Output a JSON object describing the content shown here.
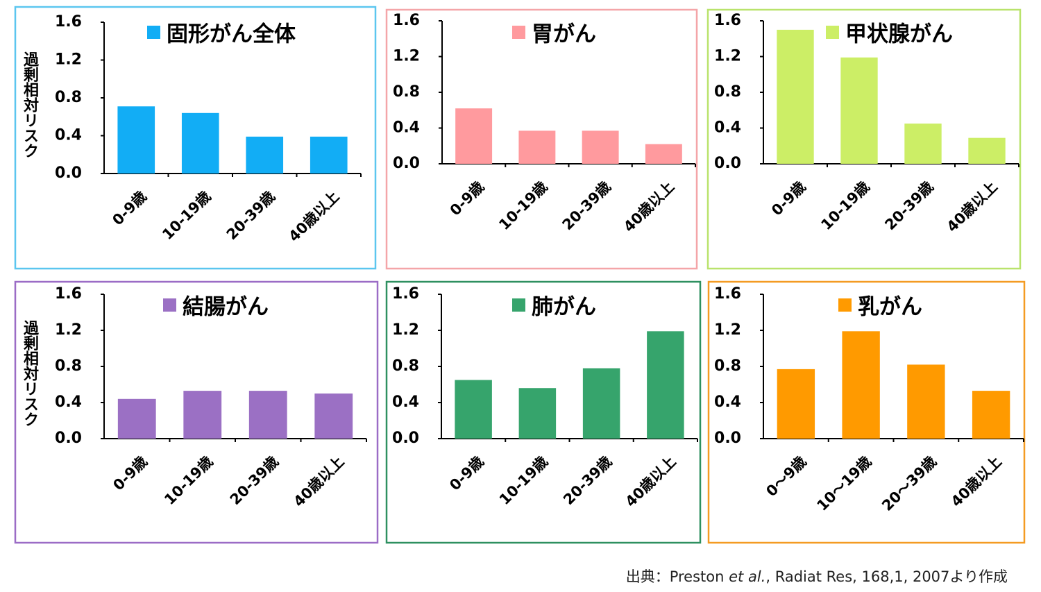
{
  "chart_data": [
    {
      "type": "bar",
      "title": "固形がん全体",
      "ylabel": "過剰相対リスク",
      "categories": [
        "0-9歳",
        "10-19歳",
        "20-39歳",
        "40歳以上"
      ],
      "values": [
        0.71,
        0.64,
        0.39,
        0.39
      ],
      "color": "#12adf5",
      "ylim": [
        0,
        1.6
      ],
      "yticks": [
        {
          "value": 0,
          "label": "0.0"
        },
        0.4,
        0.8,
        1.2,
        1.6
      ]
    },
    {
      "type": "bar",
      "title": "胃がん",
      "categories": [
        "0-9歳",
        "10-19歳",
        "20-39歳",
        "40歳以上"
      ],
      "values": [
        0.62,
        0.37,
        0.37,
        0.22
      ],
      "color": "#ff9a9e",
      "ylim": [
        0,
        1.6
      ],
      "yticks": [
        {
          "value": 0,
          "label": "0.0"
        },
        0.4,
        0.8,
        1.2,
        1.6
      ]
    },
    {
      "type": "bar",
      "title": "甲状腺がん",
      "categories": [
        "0-9歳",
        "10-19歳",
        "20-39歳",
        "40歳以上"
      ],
      "values": [
        1.5,
        1.19,
        0.45,
        0.29
      ],
      "color": "#ccee66",
      "ylim": [
        0,
        1.6
      ],
      "yticks": [
        {
          "value": 0,
          "label": "0.0"
        },
        0.4,
        0.8,
        1.2,
        1.6
      ]
    },
    {
      "type": "bar",
      "title": "結腸がん",
      "ylabel": "過剰相対リスク",
      "categories": [
        "0-9歳",
        "10-19歳",
        "20-39歳",
        "40歳以上"
      ],
      "values": [
        0.44,
        0.53,
        0.53,
        0.5
      ],
      "color": "#9b70c4",
      "ylim": [
        0,
        1.6
      ],
      "yticks": [
        {
          "value": 0,
          "label": "0.0"
        },
        0.4,
        0.8,
        1.2,
        1.6
      ]
    },
    {
      "type": "bar",
      "title": "肺がん",
      "categories": [
        "0-9歳",
        "10-19歳",
        "20-39歳",
        "40歳以上"
      ],
      "values": [
        0.65,
        0.56,
        0.78,
        1.19
      ],
      "color": "#36a46c",
      "ylim": [
        0,
        1.6
      ],
      "yticks": [
        {
          "value": 0,
          "label": "0.0"
        },
        0.4,
        0.8,
        1.2,
        1.6
      ]
    },
    {
      "type": "bar",
      "title": "乳がん",
      "categories": [
        "0～9歳",
        "10～19歳",
        "20～39歳",
        "40歳以上"
      ],
      "values": [
        0.77,
        1.19,
        0.82,
        0.53
      ],
      "color": "#ff9a00",
      "ylim": [
        0,
        1.6
      ],
      "yticks": [
        {
          "value": 0,
          "label": "0.0"
        },
        0.4,
        0.8,
        1.2,
        1.6
      ]
    }
  ],
  "source": {
    "prefix": "出典：Preston ",
    "italic": "et al.",
    "suffix": ", Radiat Res, 168,1, 2007より作成"
  }
}
